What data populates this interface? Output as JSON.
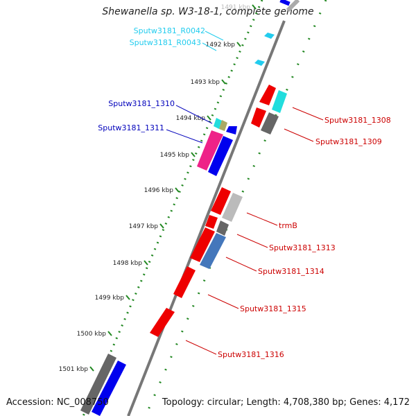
{
  "title": "Shewanella sp. W3-18-1, complete genome",
  "footer": {
    "accession": "Accession: NC_008750",
    "topology": "Topology: circular; Length: 4,708,380 bp; Genes: 4,172"
  },
  "ruler": {
    "labels": [
      "1491 kbp",
      "1492 kbp",
      "1493 kbp",
      "1494 kbp",
      "1495 kbp",
      "1496 kbp",
      "1497 kbp",
      "1498 kbp",
      "1499 kbp",
      "1500 kbp",
      "1501 kbp"
    ]
  },
  "gene_labels": {
    "left": [
      {
        "text": "Sputw3181_R0042",
        "color": "#22ccee"
      },
      {
        "text": "Sputw3181_R0043",
        "color": "#22ccee"
      },
      {
        "text": "Sputw3181_1310",
        "color": "#0000bb"
      },
      {
        "text": "Sputw3181_1311",
        "color": "#0000bb"
      }
    ],
    "right": [
      {
        "text": "Sputw3181_1308",
        "color": "#cc0000"
      },
      {
        "text": "Sputw3181_1309",
        "color": "#cc0000"
      },
      {
        "text": "trmB",
        "color": "#cc0000"
      },
      {
        "text": "Sputw3181_1313",
        "color": "#cc0000"
      },
      {
        "text": "Sputw3181_1314",
        "color": "#cc0000"
      },
      {
        "text": "Sputw3181_1315",
        "color": "#cc0000"
      },
      {
        "text": "Sputw3181_1316",
        "color": "#cc0000"
      }
    ]
  },
  "colors": {
    "backbone": "#888888",
    "ruler_dots": "#228822",
    "forward_gene": "#ee0000",
    "reverse_gene": "#0000ee",
    "rna": "#22ccee",
    "pink": "#ee2288",
    "gray_track": "#666666"
  }
}
